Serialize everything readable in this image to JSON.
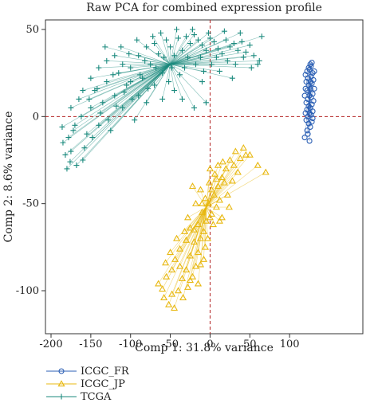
{
  "chart_data": {
    "type": "scatter",
    "title": "Raw PCA for combined expression profile",
    "xlabel": "Comp 1: 31.8% variance",
    "ylabel": "Comp 2: 8.6% variance",
    "xlim": [
      -200,
      150
    ],
    "ylim": [
      -115,
      50
    ],
    "xticks": [
      -200,
      -150,
      -100,
      -50,
      0,
      50,
      100
    ],
    "yticks": [
      -100,
      -50,
      0,
      50
    ],
    "reference_lines": {
      "x": 0,
      "y": 0,
      "color": "#b22222",
      "style": "dashed"
    },
    "legend_position": "bottom-left",
    "series": [
      {
        "name": "ICGC_FR",
        "marker": "circle",
        "color": "#2b5fb4",
        "centroid": [
          125,
          10
        ],
        "points": [
          [
            120,
            24
          ],
          [
            122,
            26
          ],
          [
            124,
            28
          ],
          [
            126,
            30
          ],
          [
            128,
            31
          ],
          [
            125,
            27
          ],
          [
            123,
            22
          ],
          [
            121,
            20
          ],
          [
            127,
            23
          ],
          [
            129,
            25
          ],
          [
            124,
            18
          ],
          [
            122,
            15
          ],
          [
            126,
            16
          ],
          [
            128,
            19
          ],
          [
            130,
            21
          ],
          [
            125,
            12
          ],
          [
            123,
            10
          ],
          [
            121,
            8
          ],
          [
            127,
            11
          ],
          [
            129,
            13
          ],
          [
            124,
            6
          ],
          [
            122,
            4
          ],
          [
            126,
            5
          ],
          [
            128,
            7
          ],
          [
            125,
            2
          ],
          [
            123,
            0
          ],
          [
            121,
            -2
          ],
          [
            127,
            1
          ],
          [
            129,
            3
          ],
          [
            124,
            -4
          ],
          [
            126,
            -6
          ],
          [
            122,
            -8
          ],
          [
            128,
            -3
          ],
          [
            130,
            9
          ],
          [
            131,
            16
          ],
          [
            119,
            12
          ],
          [
            120,
            2
          ],
          [
            123,
            -10
          ],
          [
            119,
            -12
          ],
          [
            125,
            -14
          ],
          [
            131,
            26
          ],
          [
            127,
            29
          ],
          [
            129,
            -1
          ],
          [
            120,
            16
          ],
          [
            126,
            20
          ]
        ]
      },
      {
        "name": "ICGC_JP",
        "marker": "triangle",
        "color": "#e8b810",
        "centroid": [
          -5,
          -52
        ],
        "points": [
          [
            -28,
            -98
          ],
          [
            -22,
            -92
          ],
          [
            -18,
            -86
          ],
          [
            -25,
            -80
          ],
          [
            -15,
            -78
          ],
          [
            -30,
            -88
          ],
          [
            -35,
            -93
          ],
          [
            -12,
            -70
          ],
          [
            -8,
            -66
          ],
          [
            -20,
            -72
          ],
          [
            -5,
            -60
          ],
          [
            -10,
            -55
          ],
          [
            -2,
            -50
          ],
          [
            5,
            -45
          ],
          [
            10,
            -40
          ],
          [
            15,
            -35
          ],
          [
            20,
            -30
          ],
          [
            25,
            -25
          ],
          [
            32,
            -20
          ],
          [
            42,
            -18
          ],
          [
            60,
            -28
          ],
          [
            70,
            -32
          ],
          [
            45,
            -22
          ],
          [
            12,
            -48
          ],
          [
            2,
            -42
          ],
          [
            8,
            -52
          ],
          [
            -6,
            -47
          ],
          [
            18,
            -38
          ],
          [
            -15,
            -62
          ],
          [
            -25,
            -64
          ],
          [
            -30,
            -71
          ],
          [
            -38,
            -76
          ],
          [
            -44,
            -82
          ],
          [
            -48,
            -88
          ],
          [
            -55,
            -92
          ],
          [
            -60,
            -99
          ],
          [
            -48,
            -102
          ],
          [
            -52,
            -108
          ],
          [
            -40,
            -100
          ],
          [
            -34,
            -104
          ],
          [
            -45,
            -110
          ],
          [
            -65,
            -96
          ],
          [
            -56,
            -84
          ],
          [
            -42,
            -70
          ],
          [
            -12,
            -85
          ],
          [
            -6,
            -75
          ],
          [
            0,
            -58
          ],
          [
            -1,
            -38
          ],
          [
            6,
            -33
          ],
          [
            30,
            -28
          ],
          [
            28,
            -37
          ],
          [
            22,
            -45
          ],
          [
            15,
            -58
          ],
          [
            -18,
            -50
          ],
          [
            -28,
            -58
          ],
          [
            -20,
            -65
          ],
          [
            -8,
            -82
          ],
          [
            -3,
            -70
          ],
          [
            4,
            -62
          ],
          [
            38,
            -24
          ],
          [
            50,
            -22
          ],
          [
            35,
            -32
          ],
          [
            10,
            -28
          ],
          [
            -32,
            -66
          ],
          [
            -50,
            -78
          ],
          [
            -38,
            -86
          ],
          [
            -25,
            -94
          ],
          [
            -15,
            -96
          ],
          [
            -58,
            -104
          ],
          [
            12,
            -60
          ],
          [
            24,
            -52
          ],
          [
            -12,
            -42
          ],
          [
            -22,
            -40
          ],
          [
            8,
            -36
          ],
          [
            0,
            -30
          ],
          [
            16,
            -26
          ],
          [
            -10,
            -50
          ],
          [
            2,
            -56
          ]
        ]
      },
      {
        "name": "TCGA",
        "marker": "plus",
        "color": "#1b8a7e",
        "centroid": [
          -50,
          30
        ],
        "points": [
          [
            -185,
            -15
          ],
          [
            -180,
            -30
          ],
          [
            -175,
            -20
          ],
          [
            -170,
            -5
          ],
          [
            -165,
            10
          ],
          [
            -160,
            -25
          ],
          [
            -155,
            -10
          ],
          [
            -150,
            5
          ],
          [
            -145,
            15
          ],
          [
            -140,
            -5
          ],
          [
            -135,
            8
          ],
          [
            -130,
            20
          ],
          [
            -125,
            -8
          ],
          [
            -120,
            12
          ],
          [
            -115,
            25
          ],
          [
            -110,
            5
          ],
          [
            -105,
            18
          ],
          [
            -100,
            28
          ],
          [
            -95,
            -2
          ],
          [
            -90,
            35
          ],
          [
            -85,
            22
          ],
          [
            -80,
            40
          ],
          [
            -75,
            30
          ],
          [
            -70,
            42
          ],
          [
            -65,
            36
          ],
          [
            -60,
            25
          ],
          [
            -55,
            44
          ],
          [
            -50,
            40
          ],
          [
            -45,
            35
          ],
          [
            -40,
            45
          ],
          [
            -35,
            38
          ],
          [
            -30,
            46
          ],
          [
            -25,
            42
          ],
          [
            -20,
            47
          ],
          [
            -15,
            44
          ],
          [
            -10,
            41
          ],
          [
            -5,
            38
          ],
          [
            0,
            45
          ],
          [
            5,
            43
          ],
          [
            10,
            39
          ],
          [
            15,
            36
          ],
          [
            20,
            44
          ],
          [
            25,
            40
          ],
          [
            30,
            42
          ],
          [
            35,
            38
          ],
          [
            40,
            43
          ],
          [
            45,
            37
          ],
          [
            50,
            41
          ],
          [
            55,
            35
          ],
          [
            60,
            30
          ],
          [
            65,
            46
          ],
          [
            62,
            32
          ],
          [
            -5,
            8
          ],
          [
            -20,
            5
          ],
          [
            -35,
            10
          ],
          [
            -10,
            20
          ],
          [
            -60,
            10
          ],
          [
            -45,
            15
          ],
          [
            -70,
            18
          ],
          [
            -80,
            8
          ],
          [
            -90,
            12
          ],
          [
            -100,
            20
          ],
          [
            -110,
            30
          ],
          [
            -120,
            35
          ],
          [
            -130,
            32
          ],
          [
            -140,
            28
          ],
          [
            -150,
            22
          ],
          [
            -160,
            15
          ],
          [
            -175,
            5
          ],
          [
            -178,
            -12
          ],
          [
            -182,
            -22
          ],
          [
            -168,
            -28
          ],
          [
            -158,
            -18
          ],
          [
            -148,
            -12
          ],
          [
            -138,
            2
          ],
          [
            -128,
            -2
          ],
          [
            -118,
            6
          ],
          [
            -108,
            14
          ],
          [
            -98,
            10
          ],
          [
            -88,
            24
          ],
          [
            -78,
            16
          ],
          [
            -68,
            28
          ],
          [
            -58,
            34
          ],
          [
            -48,
            28
          ],
          [
            -38,
            24
          ],
          [
            -28,
            34
          ],
          [
            -18,
            30
          ],
          [
            -8,
            26
          ],
          [
            2,
            30
          ],
          [
            12,
            26
          ],
          [
            22,
            32
          ],
          [
            32,
            30
          ],
          [
            42,
            34
          ],
          [
            52,
            28
          ],
          [
            -62,
            48
          ],
          [
            -42,
            50
          ],
          [
            -22,
            50
          ],
          [
            -2,
            48
          ],
          [
            18,
            49
          ],
          [
            38,
            48
          ],
          [
            -82,
            32
          ],
          [
            -72,
            46
          ],
          [
            -52,
            20
          ],
          [
            -32,
            28
          ],
          [
            -12,
            34
          ],
          [
            8,
            34
          ],
          [
            28,
            22
          ],
          [
            -92,
            44
          ],
          [
            -112,
            40
          ],
          [
            -132,
            40
          ],
          [
            -102,
            36
          ],
          [
            -122,
            24
          ],
          [
            -142,
            16
          ],
          [
            -152,
            10
          ],
          [
            -162,
            0
          ],
          [
            -172,
            -8
          ],
          [
            -186,
            -6
          ],
          [
            -176,
            -26
          ]
        ]
      }
    ]
  }
}
